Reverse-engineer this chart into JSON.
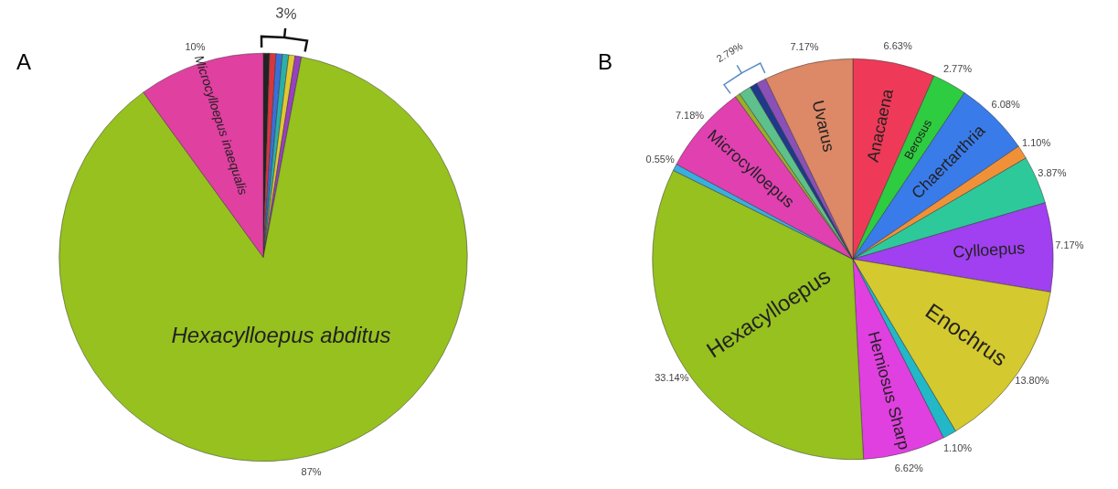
{
  "chart_data": [
    {
      "type": "pie",
      "title": "A",
      "categories": [
        null,
        null,
        null,
        null,
        null,
        null,
        "Hexacylloepus abditus",
        "Microcylloepus inaequalis"
      ],
      "values": [
        0.5,
        0.5,
        0.5,
        0.5,
        0.5,
        0.5,
        87,
        10
      ],
      "colors": [
        "#222222",
        "#d9363e",
        "#3b6fd8",
        "#2bb0a8",
        "#e0c830",
        "#9a3fc0",
        "#96c11f",
        "#e040a0"
      ],
      "value_labels": [
        null,
        null,
        null,
        null,
        null,
        null,
        "87%",
        "10%"
      ],
      "annotations": [
        "3%"
      ],
      "legend": false
    },
    {
      "type": "pie",
      "title": "B",
      "categories": [
        "Anacaena",
        "Berosus",
        "Chaertarthria",
        null,
        null,
        "Cylloepus",
        "Enochrus",
        null,
        "Hemiosus Sharp",
        "Hexacylloepus",
        null,
        "Microcylloepus",
        null,
        null,
        null,
        null,
        "Uvarus"
      ],
      "values": [
        6.63,
        2.77,
        6.08,
        1.1,
        3.87,
        7.17,
        13.8,
        1.1,
        6.62,
        33.14,
        0.55,
        7.18,
        0.4,
        1.0,
        0.6,
        0.79,
        7.17
      ],
      "colors": [
        "#ee3a58",
        "#2ecc40",
        "#3a7bea",
        "#f0913a",
        "#2ec99a",
        "#a040f0",
        "#d4c92e",
        "#22b8c8",
        "#e040e0",
        "#96c11f",
        "#3aaee0",
        "#e040b0",
        "#9aae2a",
        "#5ec08a",
        "#1f3a8a",
        "#8a50b8",
        "#dd8866"
      ],
      "value_labels": [
        "6.63%",
        "2.77%",
        "6.08%",
        "1.10%",
        "3.87%",
        "7.17%",
        "13.80%",
        "1.10%",
        "6.62%",
        "33.14%",
        "0.55%",
        "7.18%",
        null,
        null,
        null,
        null,
        "7.17%"
      ],
      "annotations": [
        "2.79%"
      ],
      "legend": false
    }
  ]
}
